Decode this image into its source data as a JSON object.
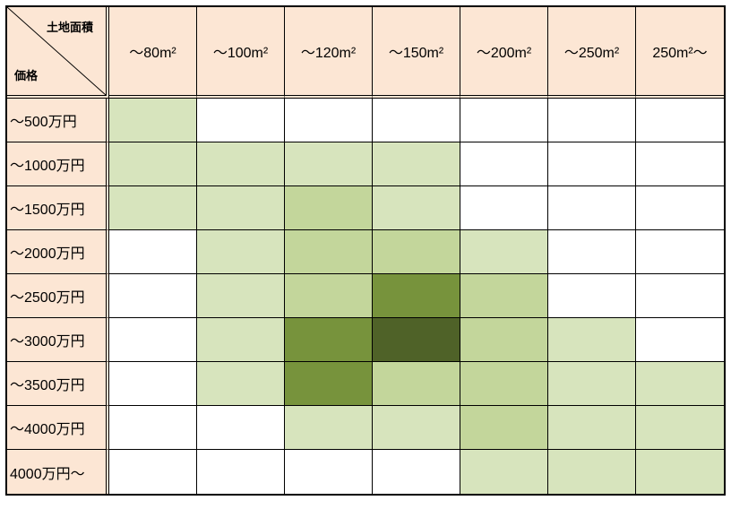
{
  "chart_data": {
    "type": "heatmap",
    "corner": {
      "top_label": "土地面積",
      "bottom_label": "価格"
    },
    "col_headers": [
      "～80m²",
      "～100m²",
      "～120m²",
      "～150m²",
      "～200m²",
      "～250m²",
      "250m²～"
    ],
    "row_headers": [
      "～500万円",
      "～1000万円",
      "～1500万円",
      "～2000万円",
      "～2500万円",
      "～3000万円",
      "～3500万円",
      "～4000万円",
      "4000万円～"
    ],
    "levels": [
      [
        1,
        0,
        0,
        0,
        0,
        0,
        0
      ],
      [
        1,
        1,
        1,
        1,
        0,
        0,
        0
      ],
      [
        1,
        1,
        2,
        1,
        0,
        0,
        0
      ],
      [
        0,
        1,
        2,
        2,
        1,
        0,
        0
      ],
      [
        0,
        1,
        2,
        3,
        2,
        0,
        0
      ],
      [
        0,
        1,
        3,
        4,
        2,
        1,
        0
      ],
      [
        0,
        1,
        3,
        2,
        2,
        1,
        1
      ],
      [
        0,
        0,
        1,
        1,
        2,
        1,
        1
      ],
      [
        0,
        0,
        0,
        0,
        1,
        1,
        1
      ]
    ],
    "level_colors": [
      "#FFFFFF",
      "#D7E4BD",
      "#C3D69B",
      "#77933C",
      "#4F6228"
    ],
    "header_bg": "#FCE6D4",
    "grid_color": "#000000"
  }
}
